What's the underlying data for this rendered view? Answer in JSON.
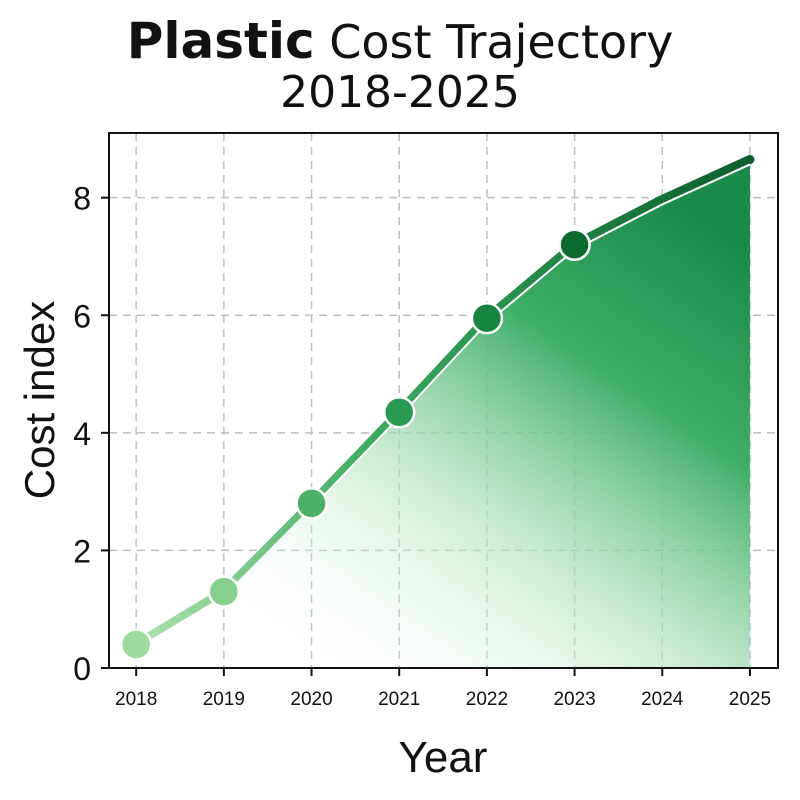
{
  "chart_data": {
    "type": "area",
    "title_bold": "Plastic",
    "title_rest": "Cost Trajectory",
    "title_line2": "2018-2025",
    "xlabel": "Year",
    "ylabel": "Cost index",
    "x": [
      2018,
      2019,
      2020,
      2021,
      2022,
      2023,
      2024,
      2025
    ],
    "values": [
      0.4,
      1.3,
      2.8,
      4.35,
      5.95,
      7.2,
      7.97,
      8.65
    ],
    "markers": [
      true,
      true,
      true,
      true,
      true,
      true,
      false,
      false
    ],
    "x_ticks": [
      "2018",
      "2019",
      "2020",
      "2021",
      "2022",
      "2023",
      "2024",
      "2025"
    ],
    "y_ticks": [
      "0",
      "2",
      "4",
      "6",
      "8"
    ],
    "xlim": [
      2017.69,
      2025.32
    ],
    "ylim": [
      0,
      9.1
    ],
    "grid": true,
    "colors": {
      "light": "#a6dfa6",
      "dark": "#0b6130",
      "mid": "#2e9e55"
    }
  }
}
